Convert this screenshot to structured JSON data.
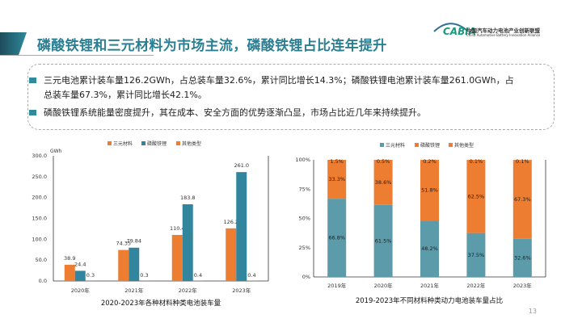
{
  "header": {
    "title": "磷酸铁锂和三元材料为市场主流，磷酸铁锂占比连年提升",
    "logo_text": "CABIA",
    "logo_cn": "中国汽车动力电池产业创新联盟",
    "logo_en": "China Automotive Battery Innovation Alliance"
  },
  "bullets": [
    {
      "line1": "三元电池累计装车量126.2GWh，占总装车量32.6%，累计同比增长14.3%；磷酸铁锂电池累计装车量261.0GWh，占",
      "line2": "总装车量67.3%，累计同比增长42.1%。"
    },
    {
      "line1": "磷酸铁锂系统能量密度提升，其在成本、安全方面的优势逐渐凸显，市场占比近几年来持续提升。"
    }
  ],
  "page_number": "13",
  "colors": {
    "orange": "#ED7D31",
    "teal": "#31859C",
    "teal_light": "#5B9BAA",
    "title": "#2A7F92"
  },
  "chart_data": [
    {
      "type": "bar",
      "title": "2020-2023年各种材料种类电池装车量",
      "ylabel": "GWh",
      "ylim": [
        0,
        300
      ],
      "yticks": [
        "0.0",
        "50.0",
        "100.0",
        "150.0",
        "200.0",
        "250.0",
        "300.0"
      ],
      "categories": [
        "2020年",
        "2021年",
        "2022年",
        "2023年"
      ],
      "series": [
        {
          "name": "三元材料",
          "values": [
            38.9,
            74.35,
            110.4,
            126.2
          ],
          "labels": [
            "38.9",
            "74.35",
            "110.4",
            "126.2"
          ]
        },
        {
          "name": "磷酸铁锂",
          "values": [
            24.4,
            79.84,
            183.8,
            261.0
          ],
          "labels": [
            "24.4",
            "79.84",
            "183.8",
            "261.0"
          ]
        },
        {
          "name": "其他类型",
          "values": [
            0.3,
            0.3,
            0.4,
            0.4
          ],
          "labels": [
            "0.3",
            "0.3",
            "0.4",
            "0.4"
          ]
        }
      ],
      "legend": "top"
    },
    {
      "type": "bar",
      "stacked": true,
      "title": "2019-2023年不同材料种类动力电池装车量占比",
      "ylim": [
        0,
        100
      ],
      "yticks": [
        "0%",
        "25%",
        "50%",
        "75%",
        "100%"
      ],
      "categories": [
        "2019年",
        "2020年",
        "2021年",
        "2022年",
        "2023年"
      ],
      "series": [
        {
          "name": "三元材料",
          "values": [
            66.8,
            61.5,
            48.2,
            37.5,
            32.6
          ]
        },
        {
          "name": "磷酸铁锂",
          "values": [
            33.3,
            38.6,
            51.8,
            62.5,
            67.3
          ]
        },
        {
          "name": "其他类型",
          "values": [
            1.5,
            0.5,
            0.2,
            0.1,
            0.1
          ]
        }
      ],
      "legend": "top"
    }
  ]
}
